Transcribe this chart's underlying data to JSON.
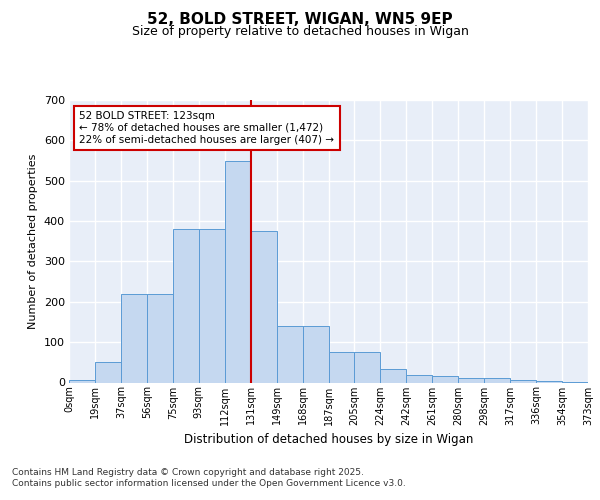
{
  "title": "52, BOLD STREET, WIGAN, WN5 9EP",
  "subtitle": "Size of property relative to detached houses in Wigan",
  "xlabel": "Distribution of detached houses by size in Wigan",
  "ylabel": "Number of detached properties",
  "bar_values": [
    7,
    50,
    220,
    220,
    380,
    380,
    550,
    375,
    140,
    140,
    75,
    75,
    33,
    18,
    15,
    10,
    10,
    7,
    3,
    2
  ],
  "bin_labels": [
    "0sqm",
    "19sqm",
    "37sqm",
    "56sqm",
    "75sqm",
    "93sqm",
    "112sqm",
    "131sqm",
    "149sqm",
    "168sqm",
    "187sqm",
    "205sqm",
    "224sqm",
    "242sqm",
    "261sqm",
    "280sqm",
    "298sqm",
    "317sqm",
    "336sqm",
    "354sqm",
    "373sqm"
  ],
  "bar_color": "#c5d8f0",
  "bar_edge_color": "#5b9bd5",
  "background_color": "#e8eef8",
  "grid_color": "#ffffff",
  "vline_color": "#cc0000",
  "annotation_box_text": "52 BOLD STREET: 123sqm\n← 78% of detached houses are smaller (1,472)\n22% of semi-detached houses are larger (407) →",
  "annotation_box_color": "#cc0000",
  "footer_text": "Contains HM Land Registry data © Crown copyright and database right 2025.\nContains public sector information licensed under the Open Government Licence v3.0.",
  "ylim": [
    0,
    700
  ],
  "yticks": [
    0,
    100,
    200,
    300,
    400,
    500,
    600,
    700
  ]
}
